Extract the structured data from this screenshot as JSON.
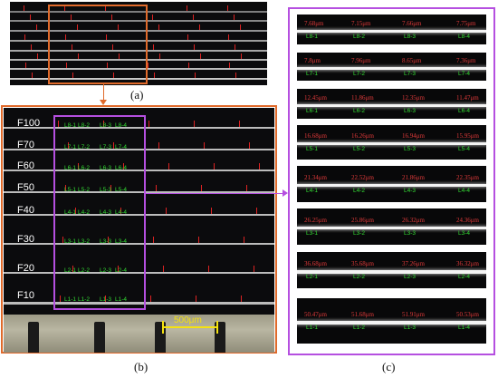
{
  "captions": {
    "a": "(a)",
    "b": "(b)",
    "c": "(c)"
  },
  "f_labels": [
    "F100",
    "F70",
    "F60",
    "F50",
    "F40",
    "F30",
    "F20",
    "F10"
  ],
  "b_groups": [
    [
      "L8-1",
      "L8-2",
      "L8-3",
      "L8-4"
    ],
    [
      "L7-1",
      "L7-2",
      "L7-3",
      "L7-4"
    ],
    [
      "L6-1",
      "L6-2",
      "L6-3",
      "L6-4"
    ],
    [
      "L5-1",
      "L5-2",
      "L5-3",
      "L5-4"
    ],
    [
      "L4-1",
      "L4-2",
      "L4-3",
      "L4-4"
    ],
    [
      "L3-1",
      "L3-2",
      "L3-3",
      "L3-4"
    ],
    [
      "L2-1",
      "L2-2",
      "L2-3",
      "L2-4"
    ],
    [
      "L1-1",
      "L1-2",
      "L1-3",
      "L1-4"
    ]
  ],
  "scale_bar": "500μm",
  "c_strips": [
    {
      "values": [
        "7.68μm",
        "7.15μm",
        "7.66μm",
        "7.75μm"
      ],
      "labels": [
        "L8-1",
        "L8-2",
        "L8-3",
        "L8-4"
      ]
    },
    {
      "values": [
        "7.8μm",
        "7.96μm",
        "8.65μm",
        "7.36μm"
      ],
      "labels": [
        "L7-1",
        "L7-2",
        "L7-3",
        "L7-4"
      ]
    },
    {
      "values": [
        "12.45μm",
        "11.86μm",
        "12.35μm",
        "11.47μm"
      ],
      "labels": [
        "L6-1",
        "L6-2",
        "L6-3",
        "L6-4"
      ]
    },
    {
      "values": [
        "16.68μm",
        "16.26μm",
        "16.94μm",
        "15.95μm"
      ],
      "labels": [
        "L5-1",
        "L5-2",
        "L5-3",
        "L5-4"
      ]
    },
    {
      "values": [
        "21.34μm",
        "22.52μm",
        "21.86μm",
        "22.35μm"
      ],
      "labels": [
        "L4-1",
        "L4-2",
        "L4-3",
        "L4-4"
      ]
    },
    {
      "values": [
        "26.25μm",
        "25.86μm",
        "26.32μm",
        "24.36μm"
      ],
      "labels": [
        "L3-1",
        "L3-2",
        "L3-3",
        "L3-4"
      ]
    },
    {
      "values": [
        "36.68μm",
        "35.68μm",
        "37.26μm",
        "36.32μm"
      ],
      "labels": [
        "L2-1",
        "L2-2",
        "L2-3",
        "L2-4"
      ]
    },
    {
      "values": [
        "50.47μm",
        "51.68μm",
        "51.91μm",
        "50.53μm"
      ],
      "labels": [
        "L1-1",
        "L1-2",
        "L1-3",
        "L1-4"
      ]
    }
  ],
  "colors": {
    "orange_frame": "#e06a2b",
    "purple_frame": "#b54fe0",
    "green_label": "#33dd33",
    "red_value": "#e23b3b"
  }
}
